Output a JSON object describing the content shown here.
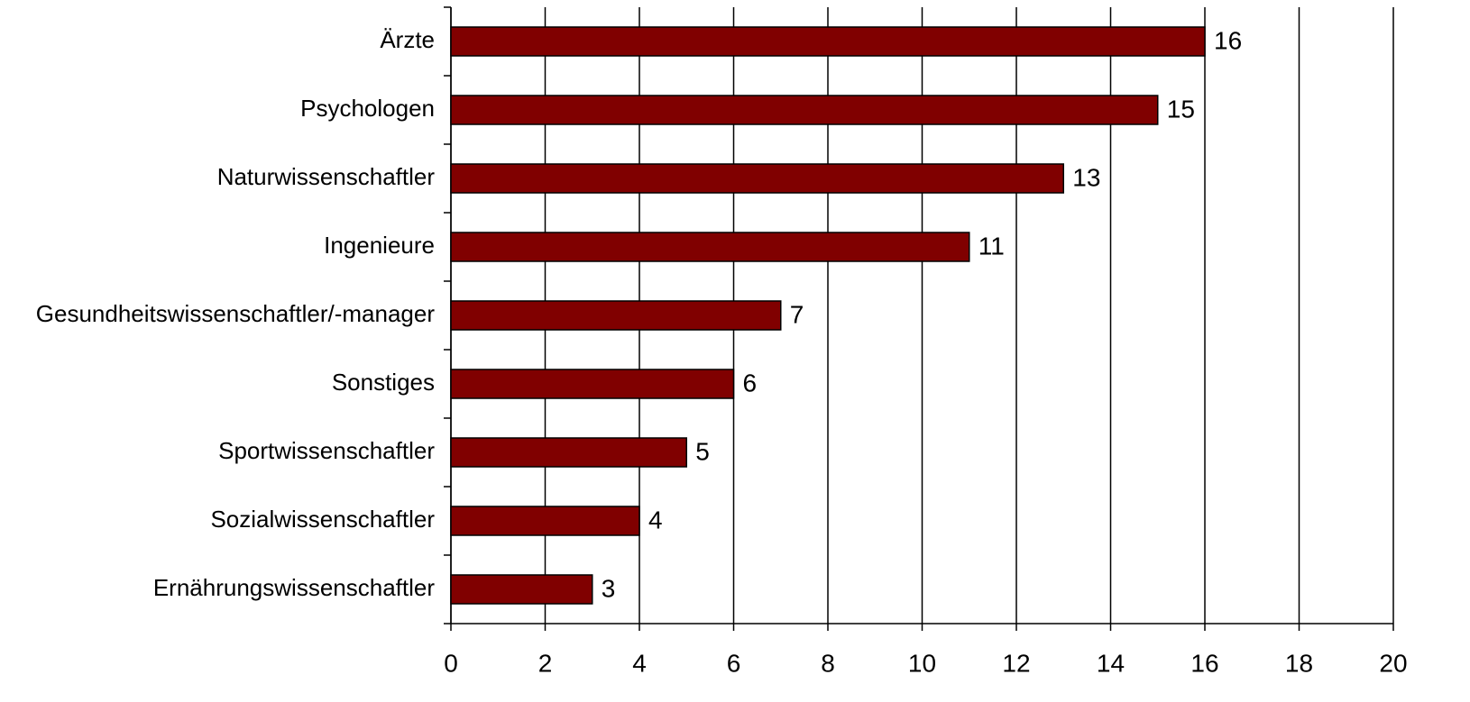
{
  "chart_data": {
    "type": "bar",
    "orientation": "horizontal",
    "categories": [
      "Ärzte",
      "Psychologen",
      "Naturwissenschaftler",
      "Ingenieure",
      "Gesundheitswissenschaftler/-manager",
      "Sonstiges",
      "Sportwissenschaftler",
      "Sozialwissenschaftler",
      "Ernährungswissenschaftler"
    ],
    "values": [
      16,
      15,
      13,
      11,
      7,
      6,
      5,
      4,
      3
    ],
    "color": "#800000",
    "xlim": [
      0,
      20
    ],
    "xticks": [
      0,
      2,
      4,
      6,
      8,
      10,
      12,
      14,
      16,
      18,
      20
    ],
    "grid": true
  }
}
